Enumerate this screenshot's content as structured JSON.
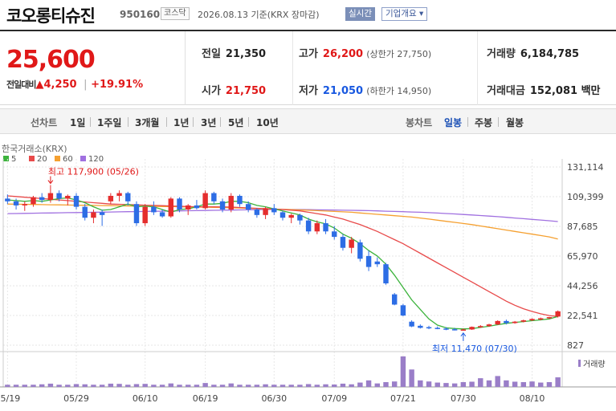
{
  "header": {
    "name": "코오롱티슈진",
    "code": "950160",
    "market": "코스닥",
    "date": "2026.08.13 기준(KRX 장마감)",
    "realtime_btn": "실시간",
    "company_btn": "기업개요 ▾"
  },
  "quote": {
    "price": "25,600",
    "change_label": "전일대비",
    "change_value": "▲4,250",
    "change_pct": "+19.91%",
    "prev_label": "전일",
    "prev": "21,350",
    "high_label": "고가",
    "high": "26,200",
    "upper_limit": "(상한가 27,750)",
    "volume_label": "거래량",
    "volume": "6,184,785",
    "open_label": "시가",
    "open": "21,750",
    "low_label": "저가",
    "low": "21,050",
    "lower_limit": "(하한가 14,950)",
    "amount_label": "거래대금",
    "amount": "152,081 백만"
  },
  "tabs": {
    "line_label": "선차트",
    "periods": [
      "1일",
      "1주일",
      "3개월",
      "1년",
      "3년",
      "5년",
      "10년"
    ],
    "candle_label": "봉차트",
    "candles": [
      "일봉",
      "주봉",
      "월봉"
    ]
  },
  "chart_data": {
    "type": "candlestick",
    "source_label": "한국거래소(KRX)",
    "ma_legend": [
      {
        "name": "5",
        "color": "#3cb33c"
      },
      {
        "name": "20",
        "color": "#e84a4a"
      },
      {
        "name": "60",
        "color": "#f5a030"
      },
      {
        "name": "120",
        "color": "#a070e0"
      }
    ],
    "y_ticks": [
      "131,114",
      "109,399",
      "87,685",
      "65,970",
      "44,256",
      "22,541",
      "827"
    ],
    "y_tick_values": [
      131114,
      109399,
      87685,
      65970,
      44256,
      22541,
      827
    ],
    "x_ticks": [
      "05/19",
      "05/29",
      "06/10",
      "06/19",
      "06/30",
      "07/09",
      "07/21",
      "07/30",
      "08/10"
    ],
    "x_tick_index": [
      0,
      8,
      16,
      23,
      31,
      38,
      46,
      53,
      61
    ],
    "max_annot": "최고 117,900 (05/26)",
    "max_index": 5,
    "max_value": 117900,
    "min_annot": "최저 11,470 (07/30)",
    "min_index": 53,
    "min_value": 11470,
    "volume_label": "거래량",
    "candles": [
      [
        108000,
        111000,
        104000,
        106000
      ],
      [
        106000,
        108000,
        100000,
        103000
      ],
      [
        103000,
        106000,
        99000,
        104000
      ],
      [
        104000,
        110000,
        102000,
        109000
      ],
      [
        109000,
        112000,
        105000,
        107000
      ],
      [
        107000,
        117900,
        105000,
        112000
      ],
      [
        112000,
        114000,
        106000,
        108000
      ],
      [
        108000,
        111000,
        103000,
        110000
      ],
      [
        110000,
        112000,
        100000,
        102000
      ],
      [
        102000,
        104000,
        92000,
        94000
      ],
      [
        94000,
        100000,
        90000,
        98000
      ],
      [
        98000,
        100000,
        88000,
        96000
      ],
      [
        106000,
        112000,
        104000,
        110000
      ],
      [
        110000,
        114000,
        106000,
        112000
      ],
      [
        112000,
        113000,
        103000,
        106000
      ],
      [
        104000,
        106000,
        88000,
        90000
      ],
      [
        90000,
        104000,
        88000,
        102000
      ],
      [
        102000,
        106000,
        96000,
        98000
      ],
      [
        98000,
        100000,
        94000,
        95000
      ],
      [
        95000,
        109000,
        94000,
        108000
      ],
      [
        108000,
        109000,
        98000,
        100000
      ],
      [
        100000,
        104000,
        96000,
        103000
      ],
      [
        103000,
        107000,
        100000,
        101000
      ],
      [
        101000,
        114000,
        100000,
        112000
      ],
      [
        112000,
        113000,
        104000,
        106000
      ],
      [
        106000,
        108000,
        98000,
        100000
      ],
      [
        100000,
        112000,
        98000,
        110000
      ],
      [
        110000,
        111000,
        102000,
        104000
      ],
      [
        104000,
        106000,
        98000,
        100000
      ],
      [
        100000,
        101000,
        94000,
        96000
      ],
      [
        96000,
        102000,
        93000,
        101000
      ],
      [
        101000,
        104000,
        96000,
        98000
      ],
      [
        98000,
        99000,
        92000,
        94000
      ],
      [
        94000,
        97000,
        90000,
        96000
      ],
      [
        96000,
        97000,
        89000,
        92000
      ],
      [
        92000,
        94000,
        82000,
        84000
      ],
      [
        84000,
        92000,
        82000,
        90000
      ],
      [
        90000,
        93000,
        82000,
        84000
      ],
      [
        84000,
        88000,
        78000,
        80000
      ],
      [
        80000,
        82000,
        70000,
        72000
      ],
      [
        72000,
        80000,
        68000,
        78000
      ],
      [
        76000,
        78000,
        62000,
        64000
      ],
      [
        66000,
        70000,
        55000,
        58000
      ],
      [
        62000,
        65000,
        58000,
        60000
      ],
      [
        60000,
        61000,
        45000,
        46000
      ],
      [
        38000,
        39000,
        30000,
        30500
      ],
      [
        30000,
        31000,
        22000,
        22500
      ],
      [
        18000,
        19000,
        14000,
        14500
      ],
      [
        15000,
        16000,
        13000,
        13500
      ],
      [
        14000,
        15000,
        12500,
        13200
      ],
      [
        13500,
        14500,
        12500,
        13000
      ],
      [
        13000,
        14000,
        11800,
        12500
      ],
      [
        12500,
        13500,
        11600,
        12000
      ],
      [
        12000,
        13000,
        11470,
        12300
      ],
      [
        12300,
        14500,
        12000,
        14200
      ],
      [
        14200,
        15500,
        13500,
        14800
      ],
      [
        14800,
        16500,
        14200,
        16000
      ],
      [
        16000,
        19000,
        15500,
        18500
      ],
      [
        18500,
        19500,
        16000,
        17000
      ],
      [
        17000,
        18500,
        16500,
        18000
      ],
      [
        18000,
        19500,
        17500,
        19000
      ],
      [
        19000,
        20500,
        18500,
        20000
      ],
      [
        20000,
        21000,
        19000,
        20500
      ],
      [
        20500,
        21500,
        20000,
        21350
      ],
      [
        21750,
        26200,
        21050,
        25600
      ]
    ],
    "volume": [
      1,
      1,
      1,
      1,
      1.2,
      1.5,
      1,
      1,
      1.3,
      1.2,
      1,
      1,
      1.5,
      1.4,
      1,
      1.3,
      1.4,
      1,
      1,
      1.6,
      1,
      1,
      1,
      1.8,
      1,
      1,
      1.6,
      1,
      1,
      1,
      1.2,
      1,
      1,
      1,
      1,
      1.3,
      1,
      1.2,
      1.1,
      1.5,
      1.2,
      2,
      3,
      1.6,
      2.2,
      2.5,
      14,
      8,
      3,
      2.5,
      2,
      1.8,
      1.6,
      2.2,
      2.4,
      4,
      3,
      5,
      3,
      2.4,
      2.2,
      2.5,
      2,
      2.2,
      4.4
    ],
    "ma5": [
      107000,
      106500,
      106000,
      106500,
      106000,
      107000,
      108000,
      108500,
      107000,
      105000,
      102000,
      99500,
      100000,
      102000,
      104000,
      102000,
      102500,
      102000,
      100000,
      98000,
      100000,
      100500,
      102000,
      104000,
      104000,
      104500,
      106000,
      106000,
      105000,
      103000,
      102000,
      100500,
      99000,
      97500,
      96000,
      93000,
      91000,
      89500,
      86500,
      82000,
      79000,
      75000,
      70000,
      66000,
      60000,
      52000,
      43000,
      34000,
      27000,
      20000,
      15500,
      13500,
      13000,
      12700,
      13000,
      13800,
      14700,
      15800,
      16800,
      17500,
      18100,
      18700,
      19300,
      20000,
      21800
    ],
    "ma20": [
      110000,
      109500,
      109000,
      108500,
      108000,
      107500,
      107000,
      106500,
      106000,
      105500,
      105000,
      104500,
      104000,
      103800,
      103600,
      103400,
      103200,
      103000,
      102800,
      102600,
      102400,
      102200,
      102000,
      102000,
      102000,
      101900,
      101800,
      101500,
      101200,
      100900,
      100600,
      100300,
      100000,
      99500,
      99000,
      98000,
      97000,
      96000,
      94500,
      93000,
      91000,
      89000,
      86500,
      84000,
      81000,
      78000,
      75000,
      71500,
      68000,
      64500,
      61000,
      57500,
      54000,
      50500,
      47000,
      43500,
      40000,
      36500,
      33000,
      30000,
      27500,
      25500,
      23800,
      22500,
      21800
    ],
    "ma60": [
      104000,
      103900,
      103800,
      103700,
      103600,
      103500,
      103400,
      103300,
      103200,
      103100,
      103000,
      102900,
      102800,
      102700,
      102600,
      102500,
      102400,
      102300,
      102200,
      102100,
      102000,
      101900,
      101800,
      101700,
      101600,
      101500,
      101300,
      101100,
      100900,
      100700,
      100500,
      100300,
      100100,
      99900,
      99700,
      99500,
      99200,
      98900,
      98600,
      98300,
      98000,
      97500,
      97000,
      96500,
      96000,
      95500,
      95000,
      94500,
      93800,
      93000,
      92200,
      91400,
      90600,
      89800,
      89000,
      88000,
      87000,
      86000,
      85000,
      84000,
      83000,
      82000,
      81000,
      80000,
      78500
    ],
    "ma120": [
      97000,
      97100,
      97200,
      97300,
      97400,
      97500,
      97600,
      97700,
      97800,
      97900,
      98000,
      98100,
      98200,
      98300,
      98400,
      98500,
      98600,
      98700,
      98800,
      98900,
      99000,
      99100,
      99200,
      99300,
      99400,
      99500,
      99600,
      99700,
      99800,
      99900,
      100000,
      100000,
      100000,
      100000,
      100000,
      99900,
      99800,
      99700,
      99600,
      99500,
      99400,
      99300,
      99200,
      99000,
      98800,
      98600,
      98400,
      98200,
      98000,
      97700,
      97400,
      97100,
      96800,
      96400,
      96000,
      95600,
      95200,
      94800,
      94300,
      93800,
      93300,
      92800,
      92300,
      91800,
      91200
    ]
  }
}
